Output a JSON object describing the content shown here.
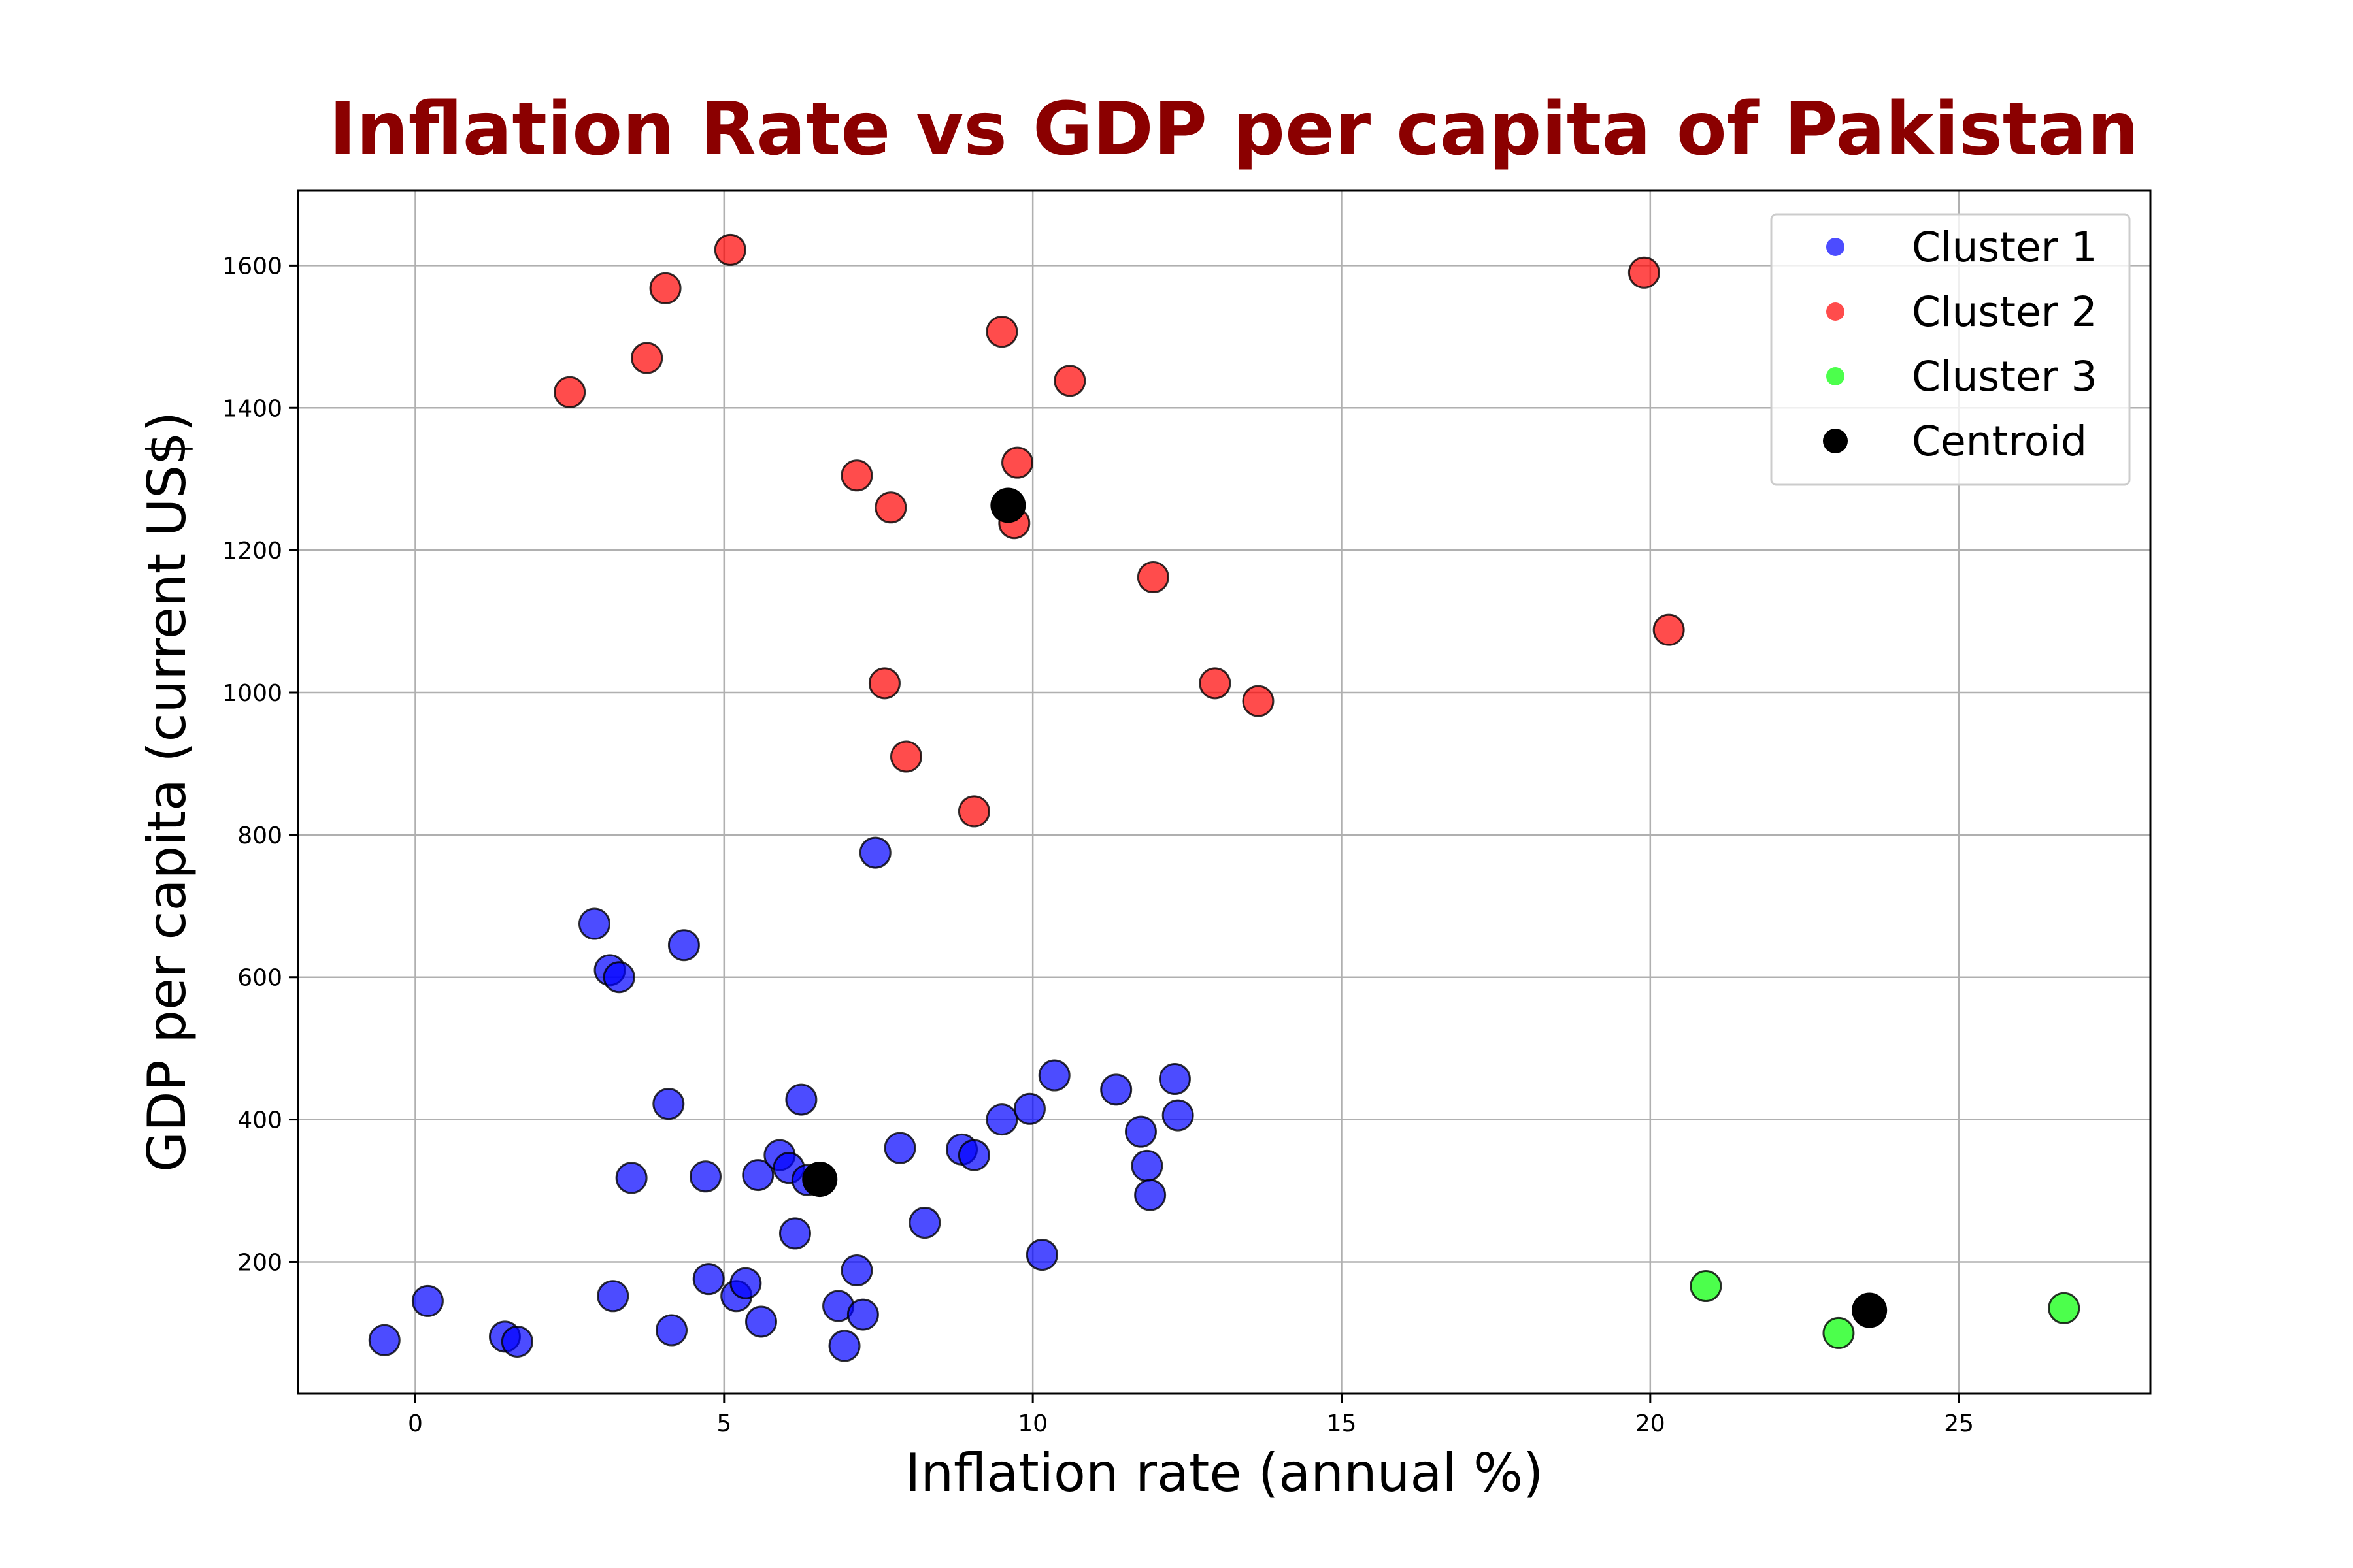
{
  "chart_data": {
    "type": "scatter",
    "title": "Inflation Rate vs GDP per capita of Pakistan",
    "xlabel": "Inflation rate (annual %)",
    "ylabel": "GDP per capita (current US$)",
    "xlim": [
      -1.9,
      28.1
    ],
    "ylim": [
      15,
      1705
    ],
    "xticks": [
      0,
      5,
      10,
      15,
      20,
      25
    ],
    "yticks": [
      200,
      400,
      600,
      800,
      1000,
      1200,
      1400,
      1600
    ],
    "grid": true,
    "legend_position": "upper right",
    "title_color": "#8b0000",
    "series": [
      {
        "name": "Cluster 1",
        "color": "#0000ff",
        "points": [
          [
            -0.5,
            90
          ],
          [
            0.2,
            145
          ],
          [
            1.45,
            95
          ],
          [
            1.65,
            88
          ],
          [
            2.9,
            675
          ],
          [
            3.15,
            610
          ],
          [
            3.3,
            600
          ],
          [
            3.5,
            318
          ],
          [
            3.2,
            152
          ],
          [
            4.1,
            422
          ],
          [
            4.15,
            104
          ],
          [
            4.35,
            645
          ],
          [
            4.7,
            320
          ],
          [
            4.75,
            176
          ],
          [
            5.2,
            152
          ],
          [
            5.35,
            170
          ],
          [
            5.55,
            322
          ],
          [
            5.6,
            116
          ],
          [
            5.9,
            350
          ],
          [
            6.05,
            332
          ],
          [
            6.15,
            240
          ],
          [
            6.25,
            428
          ],
          [
            6.35,
            315
          ],
          [
            6.85,
            138
          ],
          [
            6.95,
            82
          ],
          [
            7.15,
            188
          ],
          [
            7.25,
            126
          ],
          [
            7.45,
            775
          ],
          [
            7.85,
            360
          ],
          [
            8.25,
            255
          ],
          [
            8.85,
            358
          ],
          [
            9.05,
            350
          ],
          [
            9.5,
            400
          ],
          [
            9.95,
            415
          ],
          [
            10.15,
            210
          ],
          [
            10.35,
            462
          ],
          [
            11.35,
            442
          ],
          [
            11.75,
            383
          ],
          [
            11.85,
            335
          ],
          [
            11.9,
            294
          ],
          [
            12.3,
            457
          ],
          [
            12.35,
            406
          ]
        ]
      },
      {
        "name": "Cluster 2",
        "color": "#ff0000",
        "points": [
          [
            2.5,
            1422
          ],
          [
            3.75,
            1470
          ],
          [
            4.05,
            1568
          ],
          [
            5.1,
            1622
          ],
          [
            7.15,
            1305
          ],
          [
            7.6,
            1013
          ],
          [
            7.7,
            1260
          ],
          [
            7.95,
            910
          ],
          [
            9.05,
            833
          ],
          [
            9.5,
            1507
          ],
          [
            9.7,
            1238
          ],
          [
            9.75,
            1323
          ],
          [
            10.6,
            1438
          ],
          [
            11.95,
            1162
          ],
          [
            12.95,
            1013
          ],
          [
            13.65,
            988
          ],
          [
            19.9,
            1590
          ],
          [
            20.3,
            1088
          ]
        ]
      },
      {
        "name": "Cluster 3",
        "color": "#00ff00",
        "points": [
          [
            20.9,
            166
          ],
          [
            23.05,
            100
          ],
          [
            26.7,
            135
          ]
        ]
      },
      {
        "name": "Centroid",
        "color": "#000000",
        "points": [
          [
            6.55,
            316
          ],
          [
            9.6,
            1263
          ],
          [
            23.55,
            132
          ]
        ]
      }
    ]
  }
}
